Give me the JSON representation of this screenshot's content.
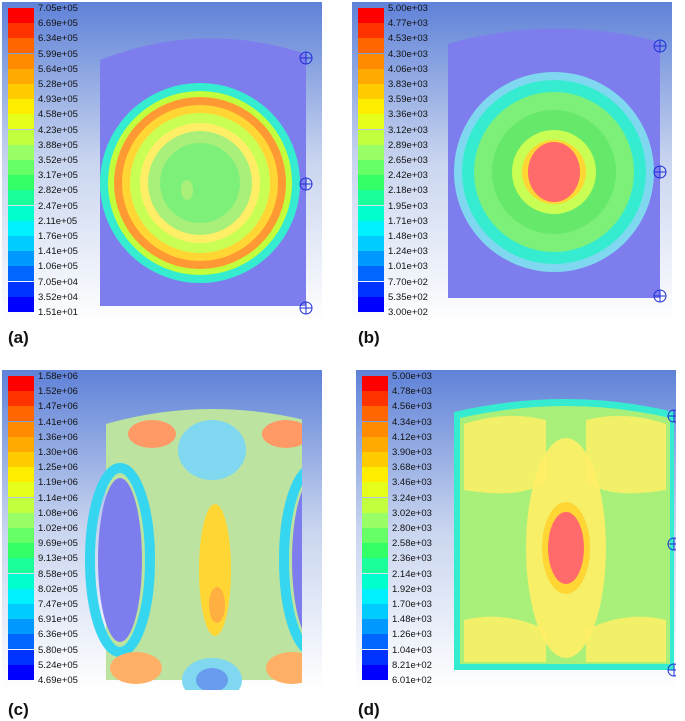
{
  "panels": [
    {
      "caption": "(a)",
      "legend": [
        "7.05e+05",
        "6.69e+05",
        "6.34e+05",
        "5.99e+05",
        "5.64e+05",
        "5.28e+05",
        "4.93e+05",
        "4.58e+05",
        "4.23e+05",
        "3.88e+05",
        "3.52e+05",
        "3.17e+05",
        "2.82e+05",
        "2.47e+05",
        "2.11e+05",
        "1.76e+05",
        "1.41e+05",
        "1.06e+05",
        "7.05e+04",
        "3.52e+04",
        "1.51e+01"
      ]
    },
    {
      "caption": "(b)",
      "legend": [
        "5.00e+03",
        "4.77e+03",
        "4.53e+03",
        "4.30e+03",
        "4.06e+03",
        "3.83e+03",
        "3.59e+03",
        "3.36e+03",
        "3.12e+03",
        "2.89e+03",
        "2.65e+03",
        "2.42e+03",
        "2.18e+03",
        "1.95e+03",
        "1.71e+03",
        "1.48e+03",
        "1.24e+03",
        "1.01e+03",
        "7.70e+02",
        "5.35e+02",
        "3.00e+02"
      ]
    },
    {
      "caption": "(c)",
      "legend": [
        "1.58e+06",
        "1.52e+06",
        "1.47e+06",
        "1.41e+06",
        "1.36e+06",
        "1.30e+06",
        "1.25e+06",
        "1.19e+06",
        "1.14e+06",
        "1.08e+06",
        "1.02e+06",
        "9.69e+05",
        "9.13e+05",
        "8.58e+05",
        "8.02e+05",
        "7.47e+05",
        "6.91e+05",
        "6.36e+05",
        "5.80e+05",
        "5.24e+05",
        "4.69e+05"
      ]
    },
    {
      "caption": "(d)",
      "legend": [
        "5.00e+03",
        "4.78e+03",
        "4.56e+03",
        "4.34e+03",
        "4.12e+03",
        "3.90e+03",
        "3.68e+03",
        "3.46e+03",
        "3.24e+03",
        "3.02e+03",
        "2.80e+03",
        "2.58e+03",
        "2.36e+03",
        "2.14e+03",
        "1.92e+03",
        "1.70e+03",
        "1.48e+03",
        "1.26e+03",
        "1.04e+03",
        "8.21e+02",
        "6.01e+02"
      ]
    }
  ],
  "colormap": [
    "#ff0000",
    "#ff3300",
    "#ff6600",
    "#ff8c00",
    "#ffaa00",
    "#ffcc00",
    "#ffee00",
    "#e6ff1a",
    "#c2ff3d",
    "#99ff66",
    "#66ff66",
    "#33ff66",
    "#1aff99",
    "#00ffcc",
    "#00f0ff",
    "#00ccff",
    "#0099ff",
    "#0066ff",
    "#0033ff",
    "#0000ff",
    "#0000ff"
  ],
  "marker_color": "#1f2fd6",
  "marker_color_alt": "#e03a3a"
}
